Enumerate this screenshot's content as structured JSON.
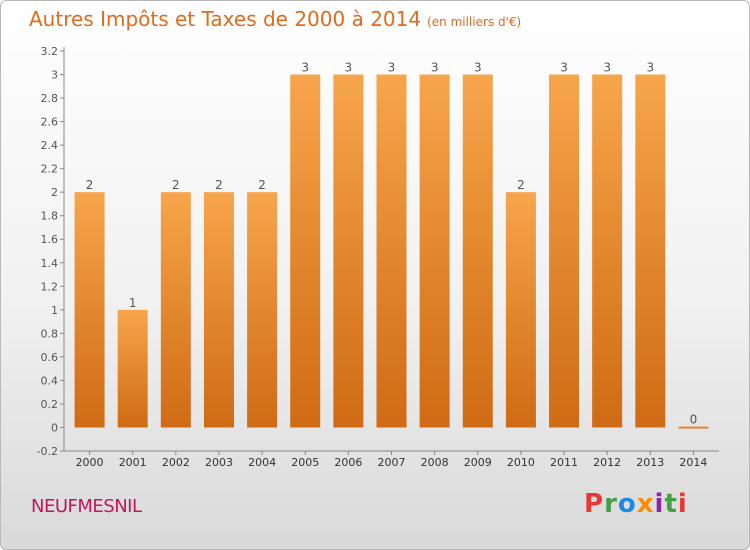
{
  "header": {
    "title": "Autres Impôts et Taxes de 2000 à 2014",
    "unit": "(en milliers d'€)"
  },
  "footer": {
    "commune": "NEUFMESNIL",
    "brand": "Proxiti"
  },
  "chart_data": {
    "type": "bar",
    "title": "Autres Impôts et Taxes de 2000 à 2014",
    "subtitle": "(en milliers d'€)",
    "xlabel": "",
    "ylabel": "",
    "categories": [
      "2000",
      "2001",
      "2002",
      "2003",
      "2004",
      "2005",
      "2006",
      "2007",
      "2008",
      "2009",
      "2010",
      "2011",
      "2012",
      "2013",
      "2014"
    ],
    "values": [
      2,
      1,
      2,
      2,
      2,
      3,
      3,
      3,
      3,
      3,
      2,
      3,
      3,
      3,
      0
    ],
    "data_labels": [
      "2",
      "1",
      "2",
      "2",
      "2",
      "3",
      "3",
      "3",
      "3",
      "3",
      "2",
      "3",
      "3",
      "3",
      "0"
    ],
    "yticks": [
      -0.2,
      0,
      0.2,
      0.4,
      0.6,
      0.8,
      1,
      1.2,
      1.4,
      1.6,
      1.8,
      2,
      2.2,
      2.4,
      2.6,
      2.8,
      3,
      3.2
    ],
    "ytick_labels": [
      "-0.2",
      "0",
      "0.2",
      "0.4",
      "0.6",
      "0.8",
      "1",
      "1.2",
      "1.4",
      "1.6",
      "1.8",
      "2",
      "2.2",
      "2.4",
      "2.6",
      "2.8",
      "3",
      "3.2"
    ],
    "ylim": [
      -0.2,
      3.2
    ],
    "grid": false,
    "colors": {
      "bar_top": "#f7a54b",
      "bar_bottom": "#cf6b14",
      "title": "#e06a1d",
      "label": "#555555"
    }
  }
}
